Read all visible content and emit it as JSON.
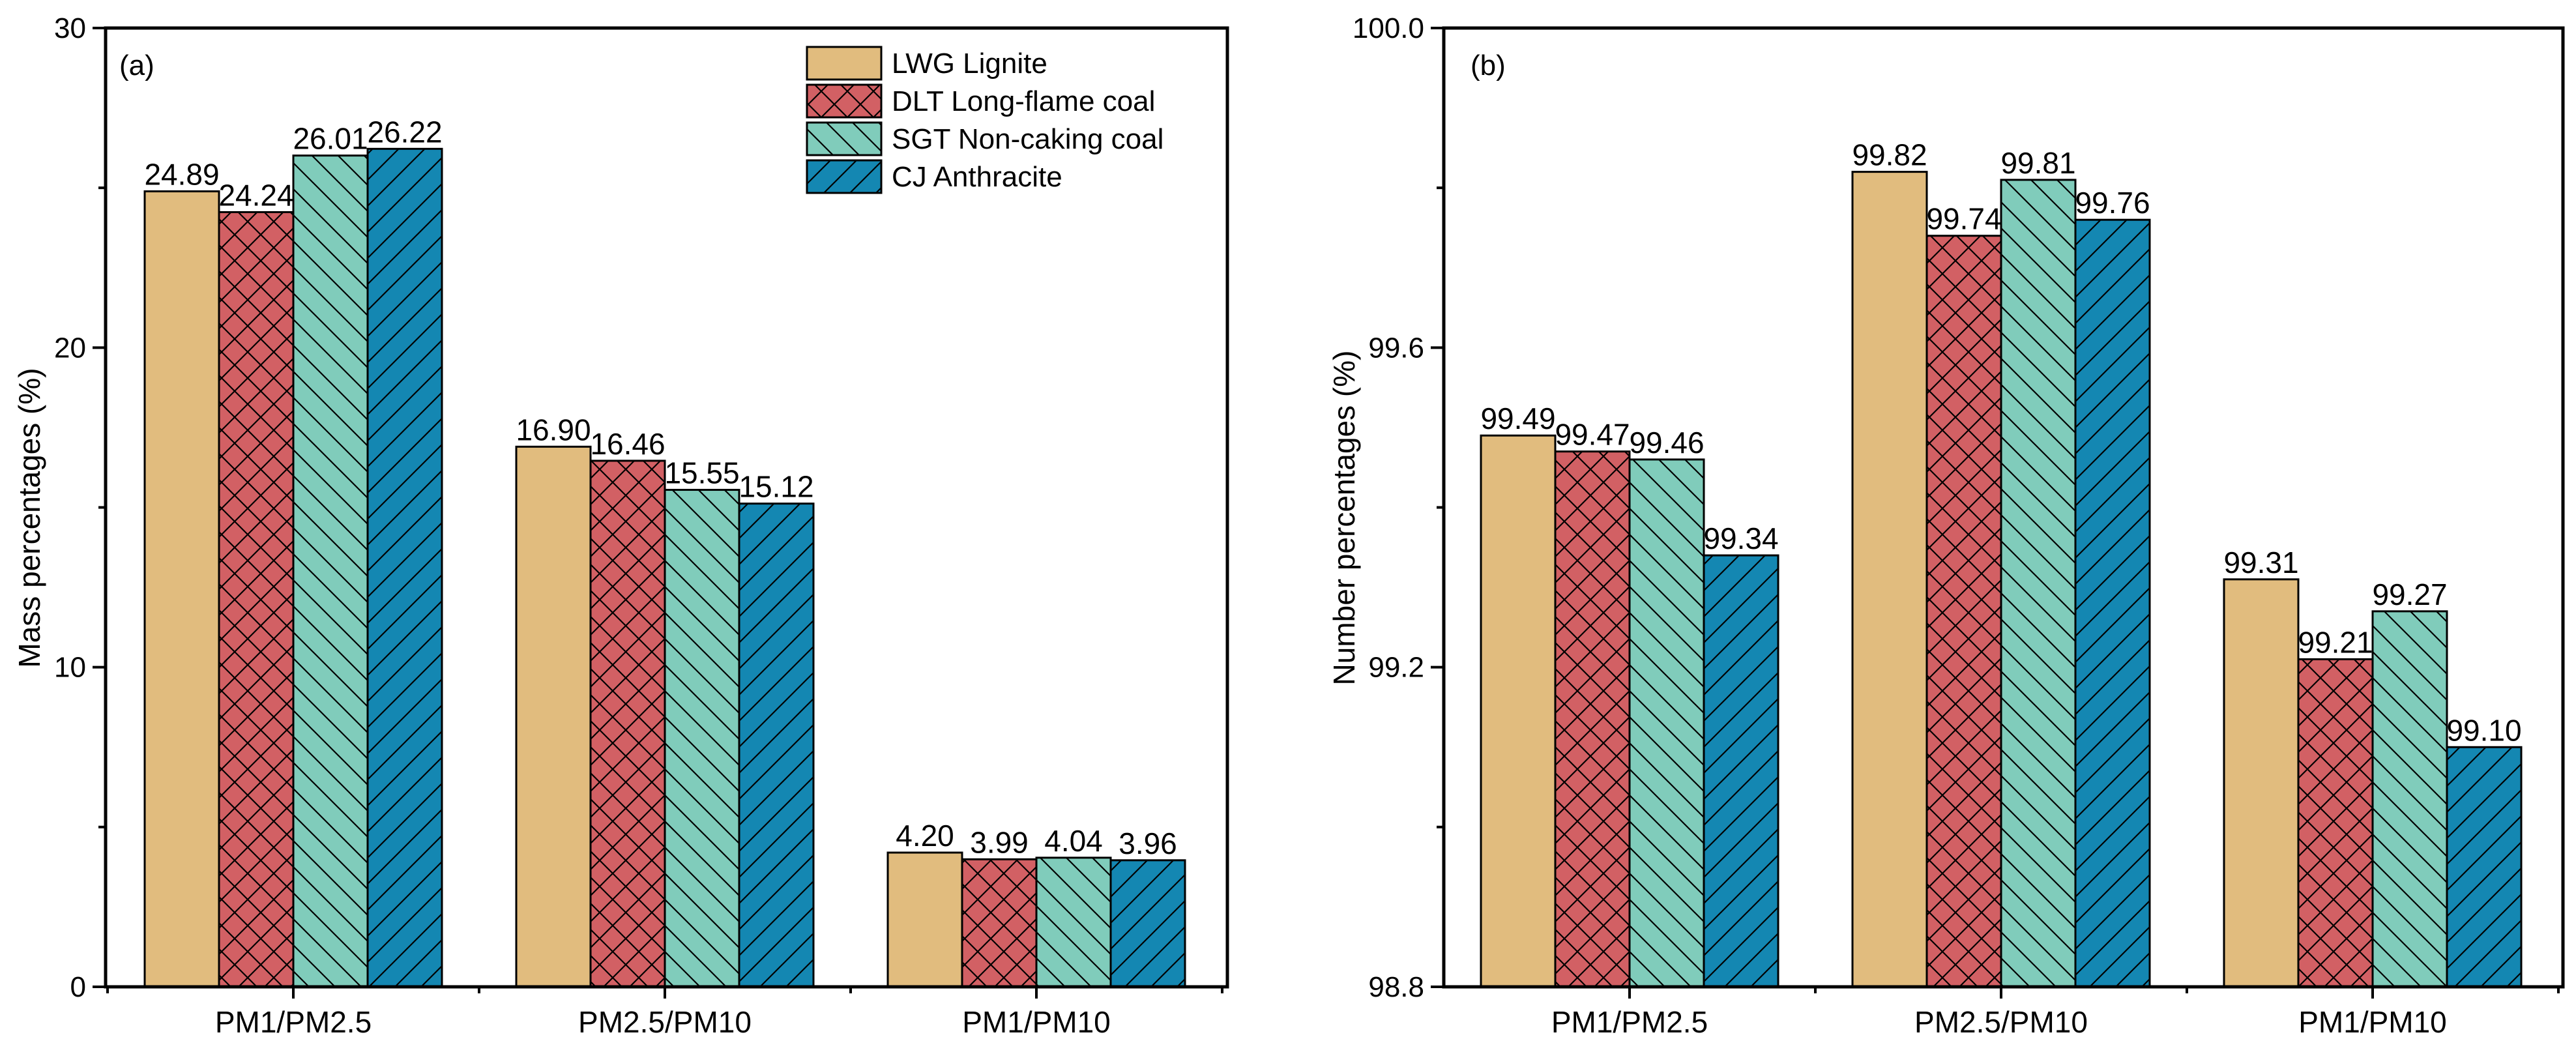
{
  "chart_data": [
    {
      "type": "bar",
      "panel_label": "(a)",
      "ylabel": "Mass percentages (%)",
      "categories": [
        "PM1/PM2.5",
        "PM2.5/PM10",
        "PM1/PM10"
      ],
      "ylim": [
        0,
        30
      ],
      "yticks": [
        0,
        10,
        20,
        30
      ],
      "series": [
        {
          "name": "LWG Lignite",
          "values": [
            24.89,
            16.9,
            4.2
          ],
          "labels": [
            "24.89",
            "16.90",
            "4.20"
          ]
        },
        {
          "name": "DLT Long-flame coal",
          "values": [
            24.24,
            16.46,
            3.99
          ],
          "labels": [
            "24.24",
            "16.46",
            "3.99"
          ]
        },
        {
          "name": "SGT Non-caking coal",
          "values": [
            26.01,
            15.55,
            4.04
          ],
          "labels": [
            "26.01",
            "15.55",
            "4.04"
          ]
        },
        {
          "name": "CJ Anthracite",
          "values": [
            26.22,
            15.12,
            3.96
          ],
          "labels": [
            "26.22",
            "15.12",
            "3.96"
          ]
        }
      ],
      "legend": {
        "position": "top-right"
      }
    },
    {
      "type": "bar",
      "panel_label": "(b)",
      "ylabel": "Number percentages (%)",
      "categories": [
        "PM1/PM2.5",
        "PM2.5/PM10",
        "PM1/PM10"
      ],
      "ylim": [
        98.8,
        100.0
      ],
      "yticks": [
        98.8,
        99.2,
        99.6,
        100.0
      ],
      "series": [
        {
          "name": "LWG Lignite",
          "values": [
            99.49,
            99.82,
            99.31
          ],
          "labels": [
            "99.49",
            "99.82",
            "99.31"
          ]
        },
        {
          "name": "DLT Long-flame coal",
          "values": [
            99.47,
            99.74,
            99.21
          ],
          "labels": [
            "99.47",
            "99.74",
            "99.21"
          ]
        },
        {
          "name": "SGT Non-caking coal",
          "values": [
            99.46,
            99.81,
            99.27
          ],
          "labels": [
            "99.46",
            "99.81",
            "99.27"
          ]
        },
        {
          "name": "CJ Anthracite",
          "values": [
            99.34,
            99.76,
            99.1
          ],
          "labels": [
            "99.34",
            "99.76",
            "99.10"
          ]
        }
      ]
    }
  ],
  "style": {
    "series_colors": [
      "#E1BC7E",
      "#D26064",
      "#80CCBB",
      "#1487B2"
    ],
    "series_patterns": [
      "none",
      "crosshatch",
      "back-diagonal",
      "forward-diagonal"
    ]
  }
}
